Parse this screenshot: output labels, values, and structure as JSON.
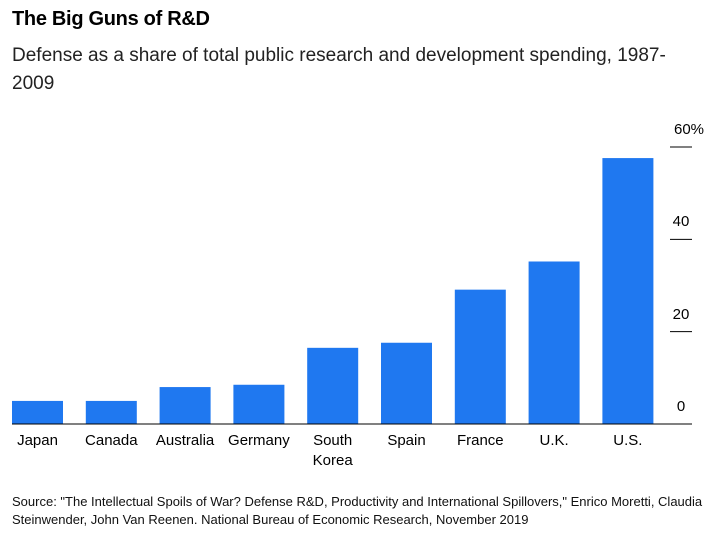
{
  "chart_data": {
    "type": "bar",
    "title": "The Big Guns of R&D",
    "subtitle": "Defense as a share of total public research and development spending, 1987-2009",
    "categories": [
      "Japan",
      "Canada",
      "Australia",
      "Germany",
      "South Korea",
      "Spain",
      "France",
      "U.K.",
      "U.S."
    ],
    "values": [
      5.0,
      5.0,
      8.0,
      8.5,
      16.5,
      17.6,
      29.1,
      35.2,
      57.6
    ],
    "color": "#1f78f0",
    "ylim": [
      0,
      60
    ],
    "yticks": [
      0,
      20,
      40,
      {
        "value": 60,
        "label": "60%"
      }
    ],
    "source": "Source: \"The Intellectual Spoils of War? Defense R&D, Productivity and International Spillovers,\" Enrico Moretti, Claudia Steinwender, John Van Reenen. National Bureau of Economic Research, November 2019"
  }
}
